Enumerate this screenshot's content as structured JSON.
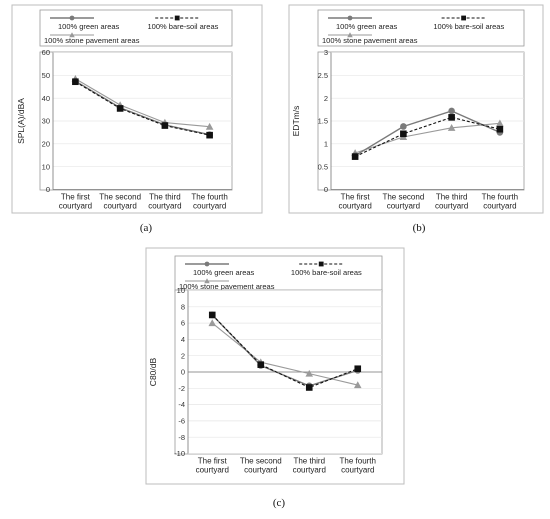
{
  "colors": {
    "green": "#7a7a7a",
    "soil": "#111111",
    "stone": "#9a9a9a"
  },
  "chart_data": [
    {
      "type": "line",
      "caption": "(a)",
      "ylabel": "SPL(A)/dBA",
      "ylim": [
        0,
        60
      ],
      "yticks": [
        0,
        10,
        20,
        30,
        40,
        50,
        60
      ],
      "categories": [
        [
          "The first",
          "courtyard"
        ],
        [
          "The second",
          "courtyard"
        ],
        [
          "The third",
          "courtyard"
        ],
        [
          "The fourth",
          "courtyard"
        ]
      ],
      "series": [
        {
          "name": "100% green areas",
          "values": [
            47.5,
            35.8,
            28.3,
            24.0
          ]
        },
        {
          "name": "100% bare-soil areas",
          "values": [
            47.2,
            35.5,
            28.0,
            23.8
          ]
        },
        {
          "name": "100% stone pavement areas",
          "values": [
            48.5,
            37.0,
            29.3,
            27.5
          ]
        }
      ]
    },
    {
      "type": "line",
      "caption": "(b)",
      "ylabel": "EDTm/s",
      "ylim": [
        0,
        3
      ],
      "yticks": [
        0,
        0.5,
        1,
        1.5,
        2,
        2.5,
        3
      ],
      "categories": [
        [
          "The first",
          "courtyard"
        ],
        [
          "The second",
          "courtyard"
        ],
        [
          "The third",
          "courtyard"
        ],
        [
          "The fourth",
          "courtyard"
        ]
      ],
      "series": [
        {
          "name": "100% green areas",
          "values": [
            0.74,
            1.38,
            1.72,
            1.25
          ]
        },
        {
          "name": "100% bare-soil areas",
          "values": [
            0.72,
            1.22,
            1.58,
            1.32
          ]
        },
        {
          "name": "100% stone pavement areas",
          "values": [
            0.8,
            1.15,
            1.35,
            1.45
          ]
        }
      ]
    },
    {
      "type": "line",
      "caption": "(c)",
      "ylabel": "C80/dB",
      "ylim": [
        -10,
        10
      ],
      "yticks": [
        -10,
        -8,
        -6,
        -4,
        -2,
        0,
        2,
        4,
        6,
        8,
        10
      ],
      "categories": [
        [
          "The first",
          "courtyard"
        ],
        [
          "The second",
          "courtyard"
        ],
        [
          "The third",
          "courtyard"
        ],
        [
          "The fourth",
          "courtyard"
        ]
      ],
      "series": [
        {
          "name": "100% green areas",
          "values": [
            7.0,
            0.8,
            -1.7,
            0.2
          ]
        },
        {
          "name": "100% bare-soil areas",
          "values": [
            7.0,
            0.9,
            -1.9,
            0.4
          ]
        },
        {
          "name": "100% stone pavement areas",
          "values": [
            6.0,
            1.2,
            -0.2,
            -1.6
          ]
        }
      ]
    }
  ]
}
